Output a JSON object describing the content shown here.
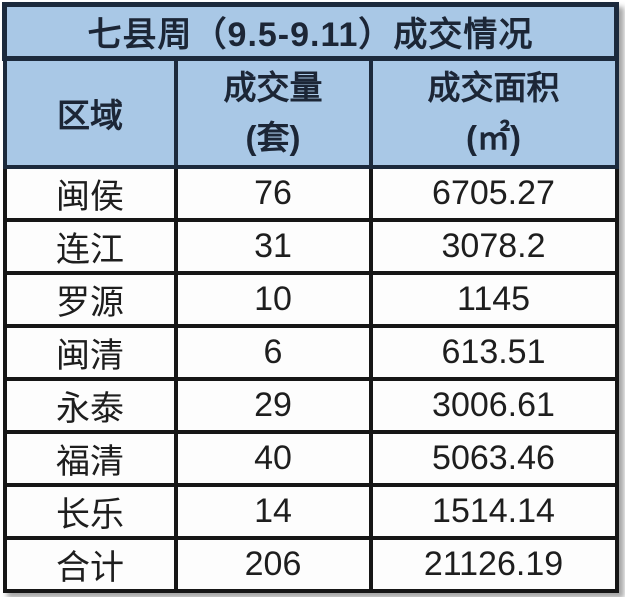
{
  "title": "七县周（9.5-9.11）成交情况",
  "header": {
    "region": "区域",
    "volume_label": "成交量",
    "volume_unit": "(套)",
    "area_label": "成交面积",
    "area_unit": "(㎡)"
  },
  "rows": [
    {
      "region": "闽侯",
      "volume": "76",
      "area": "6705.27"
    },
    {
      "region": "连江",
      "volume": "31",
      "area": "3078.2"
    },
    {
      "region": "罗源",
      "volume": "10",
      "area": "1145"
    },
    {
      "region": "闽清",
      "volume": "6",
      "area": "613.51"
    },
    {
      "region": "永泰",
      "volume": "29",
      "area": "3006.61"
    },
    {
      "region": "福清",
      "volume": "40",
      "area": "5063.46"
    },
    {
      "region": "长乐",
      "volume": "14",
      "area": "1514.14"
    },
    {
      "region": "合计",
      "volume": "206",
      "area": "21126.19"
    }
  ],
  "colors": {
    "header_bg": "#A9C8E6",
    "header_border": "#1C2A3C",
    "data_border": "#161616",
    "header_text": "#1C2636",
    "data_text": "#1E1E1E",
    "data_bg": "#FDFDFD"
  },
  "chart_data": {
    "type": "table",
    "title": "七县周（9.5-9.11）成交情况",
    "columns": [
      "区域",
      "成交量(套)",
      "成交面积(㎡)"
    ],
    "rows": [
      [
        "闽侯",
        76,
        6705.27
      ],
      [
        "连江",
        31,
        3078.2
      ],
      [
        "罗源",
        10,
        1145
      ],
      [
        "闽清",
        6,
        613.51
      ],
      [
        "永泰",
        29,
        3006.61
      ],
      [
        "福清",
        40,
        5063.46
      ],
      [
        "长乐",
        14,
        1514.14
      ],
      [
        "合计",
        206,
        21126.19
      ]
    ],
    "notes": "last row 合计 is the total; volumes sum to 206, areas sum to 21126.19"
  }
}
